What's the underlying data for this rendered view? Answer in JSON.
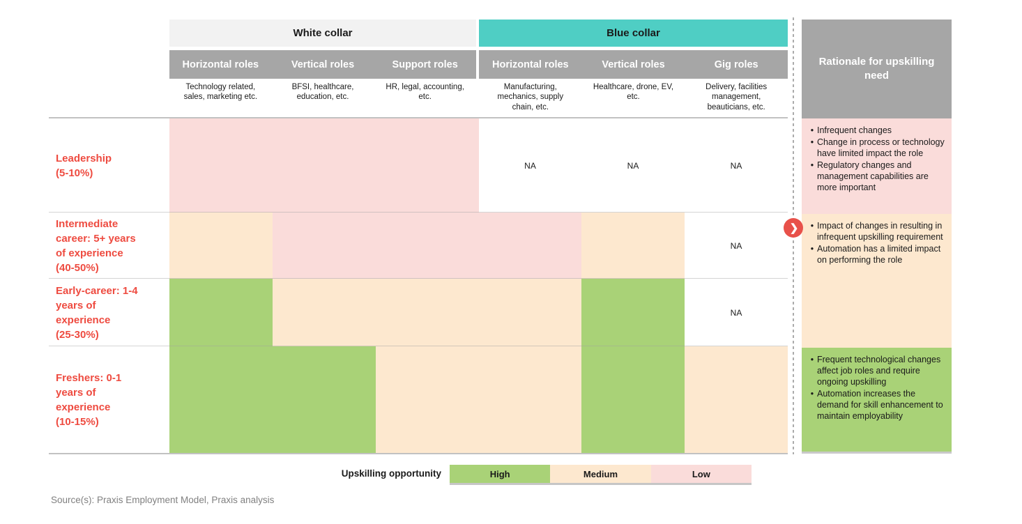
{
  "colors": {
    "white_collar_band": "#F2F2F2",
    "blue_collar_band": "#4FCEC4",
    "header_gray": "#A6A6A6",
    "high_green": "#A9D277",
    "medium_peach": "#FDE8CF",
    "low_pink": "#FADCDA",
    "row_label_red": "#EE4B40",
    "arrow_red": "#E8514A"
  },
  "chart_data": {
    "type": "heatmap",
    "column_groups": [
      {
        "label": "White collar",
        "columns": [
          "Horizontal roles",
          "Vertical roles",
          "Support roles"
        ]
      },
      {
        "label": "Blue collar",
        "columns": [
          "Horizontal roles",
          "Vertical roles",
          "Gig roles"
        ]
      }
    ],
    "column_descriptions": [
      "Technology related, sales, marketing etc.",
      "BFSI, healthcare, education, etc.",
      "HR, legal, accounting, etc.",
      "Manufacturing, mechanics, supply chain, etc.",
      "Healthcare, drone, EV, etc.",
      "Delivery, facilities management, beauticians, etc."
    ],
    "row_categories": [
      "Leadership (5-10%)",
      "Intermediate career: 5+ years of experience (40-50%)",
      "Early-career: 1-4 years of experience (25-30%)",
      "Freshers: 0-1 years of experience (10-15%)"
    ],
    "row_categories_display": [
      "Leadership\n(5-10%)",
      "Intermediate\ncareer: 5+ years\nof experience\n(40-50%)",
      "Early-career: 1-4\nyears of\nexperience\n(25-30%)",
      "Freshers: 0-1\nyears of\nexperience\n(10-15%)"
    ],
    "values": [
      [
        "Low",
        "Low",
        "Low",
        "NA",
        "NA",
        "NA"
      ],
      [
        "Medium",
        "Low",
        "Low",
        "Low",
        "Medium",
        "NA"
      ],
      [
        "High",
        "Medium",
        "Medium",
        "Medium",
        "High",
        "NA"
      ],
      [
        "High",
        "High",
        "Medium",
        "Medium",
        "High",
        "Medium"
      ]
    ],
    "na_label": "NA",
    "legend": {
      "title": "Upskilling opportunity",
      "entries": [
        {
          "label": "High",
          "level": "high",
          "color": "#A9D277"
        },
        {
          "label": "Medium",
          "level": "medium",
          "color": "#FDE8CF"
        },
        {
          "label": "Low",
          "level": "low",
          "color": "#FADCDA"
        }
      ],
      "position": "bottom"
    }
  },
  "rationale": {
    "title": "Rationale for upskilling need",
    "blocks": [
      {
        "level": "low",
        "bullets": [
          "Infrequent changes",
          "Change in process or technology have limited impact the role",
          "Regulatory changes and management capabilities are more important"
        ]
      },
      {
        "level": "medium",
        "bullets": [
          "Impact of changes in resulting in infrequent upskilling requirement",
          "Automation has a limited impact on performing the role"
        ]
      },
      {
        "level": "high",
        "bullets": [
          "Frequent technological changes affect job roles and require ongoing upskilling",
          "Automation increases the demand for skill enhancement to maintain employability"
        ]
      }
    ]
  },
  "footer": {
    "source_note": "Source(s): Praxis Employment Model, Praxis analysis"
  }
}
